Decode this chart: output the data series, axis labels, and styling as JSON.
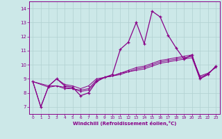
{
  "xlabel": "Windchill (Refroidissement éolien,°C)",
  "background_color": "#cce8e8",
  "grid_color": "#b0d0d0",
  "line_color": "#880088",
  "xlim": [
    -0.5,
    23.5
  ],
  "ylim": [
    6.5,
    14.5
  ],
  "yticks": [
    7,
    8,
    9,
    10,
    11,
    12,
    13,
    14
  ],
  "xticks": [
    0,
    1,
    2,
    3,
    4,
    5,
    6,
    7,
    8,
    9,
    10,
    11,
    12,
    13,
    14,
    15,
    16,
    17,
    18,
    19,
    20,
    21,
    22,
    23
  ],
  "main_series": [
    [
      0,
      8.8
    ],
    [
      1,
      7.0
    ],
    [
      2,
      8.5
    ],
    [
      3,
      9.0
    ],
    [
      4,
      8.5
    ],
    [
      5,
      8.4
    ],
    [
      6,
      7.8
    ],
    [
      7,
      8.0
    ],
    [
      8,
      8.8
    ],
    [
      9,
      9.1
    ],
    [
      10,
      9.3
    ],
    [
      11,
      11.1
    ],
    [
      12,
      11.6
    ],
    [
      13,
      13.0
    ],
    [
      14,
      11.5
    ],
    [
      15,
      13.8
    ],
    [
      16,
      13.4
    ],
    [
      17,
      12.1
    ],
    [
      18,
      11.2
    ],
    [
      19,
      10.4
    ],
    [
      20,
      10.7
    ],
    [
      21,
      9.0
    ],
    [
      22,
      9.3
    ],
    [
      23,
      9.9
    ]
  ],
  "trend_series": [
    [
      [
        0,
        8.8
      ],
      [
        1,
        7.0
      ],
      [
        2,
        8.5
      ],
      [
        3,
        9.0
      ],
      [
        4,
        8.6
      ],
      [
        5,
        8.5
      ],
      [
        6,
        8.3
      ],
      [
        7,
        8.5
      ],
      [
        8,
        9.0
      ],
      [
        9,
        9.1
      ],
      [
        10,
        9.2
      ],
      [
        11,
        9.3
      ],
      [
        12,
        9.5
      ],
      [
        13,
        9.6
      ],
      [
        14,
        9.7
      ],
      [
        15,
        9.9
      ],
      [
        16,
        10.1
      ],
      [
        17,
        10.2
      ],
      [
        18,
        10.3
      ],
      [
        19,
        10.4
      ],
      [
        20,
        10.5
      ],
      [
        21,
        9.0
      ],
      [
        22,
        9.3
      ],
      [
        23,
        9.9
      ]
    ],
    [
      [
        0,
        8.8
      ],
      [
        2,
        8.5
      ],
      [
        3,
        8.5
      ],
      [
        4,
        8.3
      ],
      [
        5,
        8.3
      ],
      [
        6,
        8.1
      ],
      [
        7,
        8.2
      ],
      [
        8,
        8.8
      ],
      [
        9,
        9.1
      ],
      [
        10,
        9.2
      ],
      [
        11,
        9.4
      ],
      [
        12,
        9.5
      ],
      [
        13,
        9.7
      ],
      [
        14,
        9.8
      ],
      [
        15,
        10.0
      ],
      [
        16,
        10.2
      ],
      [
        17,
        10.3
      ],
      [
        18,
        10.4
      ],
      [
        19,
        10.5
      ],
      [
        20,
        10.6
      ],
      [
        21,
        9.2
      ],
      [
        22,
        9.4
      ],
      [
        23,
        9.8
      ]
    ],
    [
      [
        0,
        8.8
      ],
      [
        2,
        8.4
      ],
      [
        3,
        8.5
      ],
      [
        4,
        8.4
      ],
      [
        5,
        8.3
      ],
      [
        6,
        8.2
      ],
      [
        7,
        8.3
      ],
      [
        8,
        8.9
      ],
      [
        9,
        9.1
      ],
      [
        10,
        9.2
      ],
      [
        11,
        9.4
      ],
      [
        12,
        9.6
      ],
      [
        13,
        9.8
      ],
      [
        14,
        9.9
      ],
      [
        15,
        10.1
      ],
      [
        16,
        10.3
      ],
      [
        17,
        10.4
      ],
      [
        18,
        10.5
      ],
      [
        19,
        10.6
      ],
      [
        20,
        10.7
      ],
      [
        21,
        9.1
      ],
      [
        22,
        9.35
      ],
      [
        23,
        9.85
      ]
    ]
  ]
}
